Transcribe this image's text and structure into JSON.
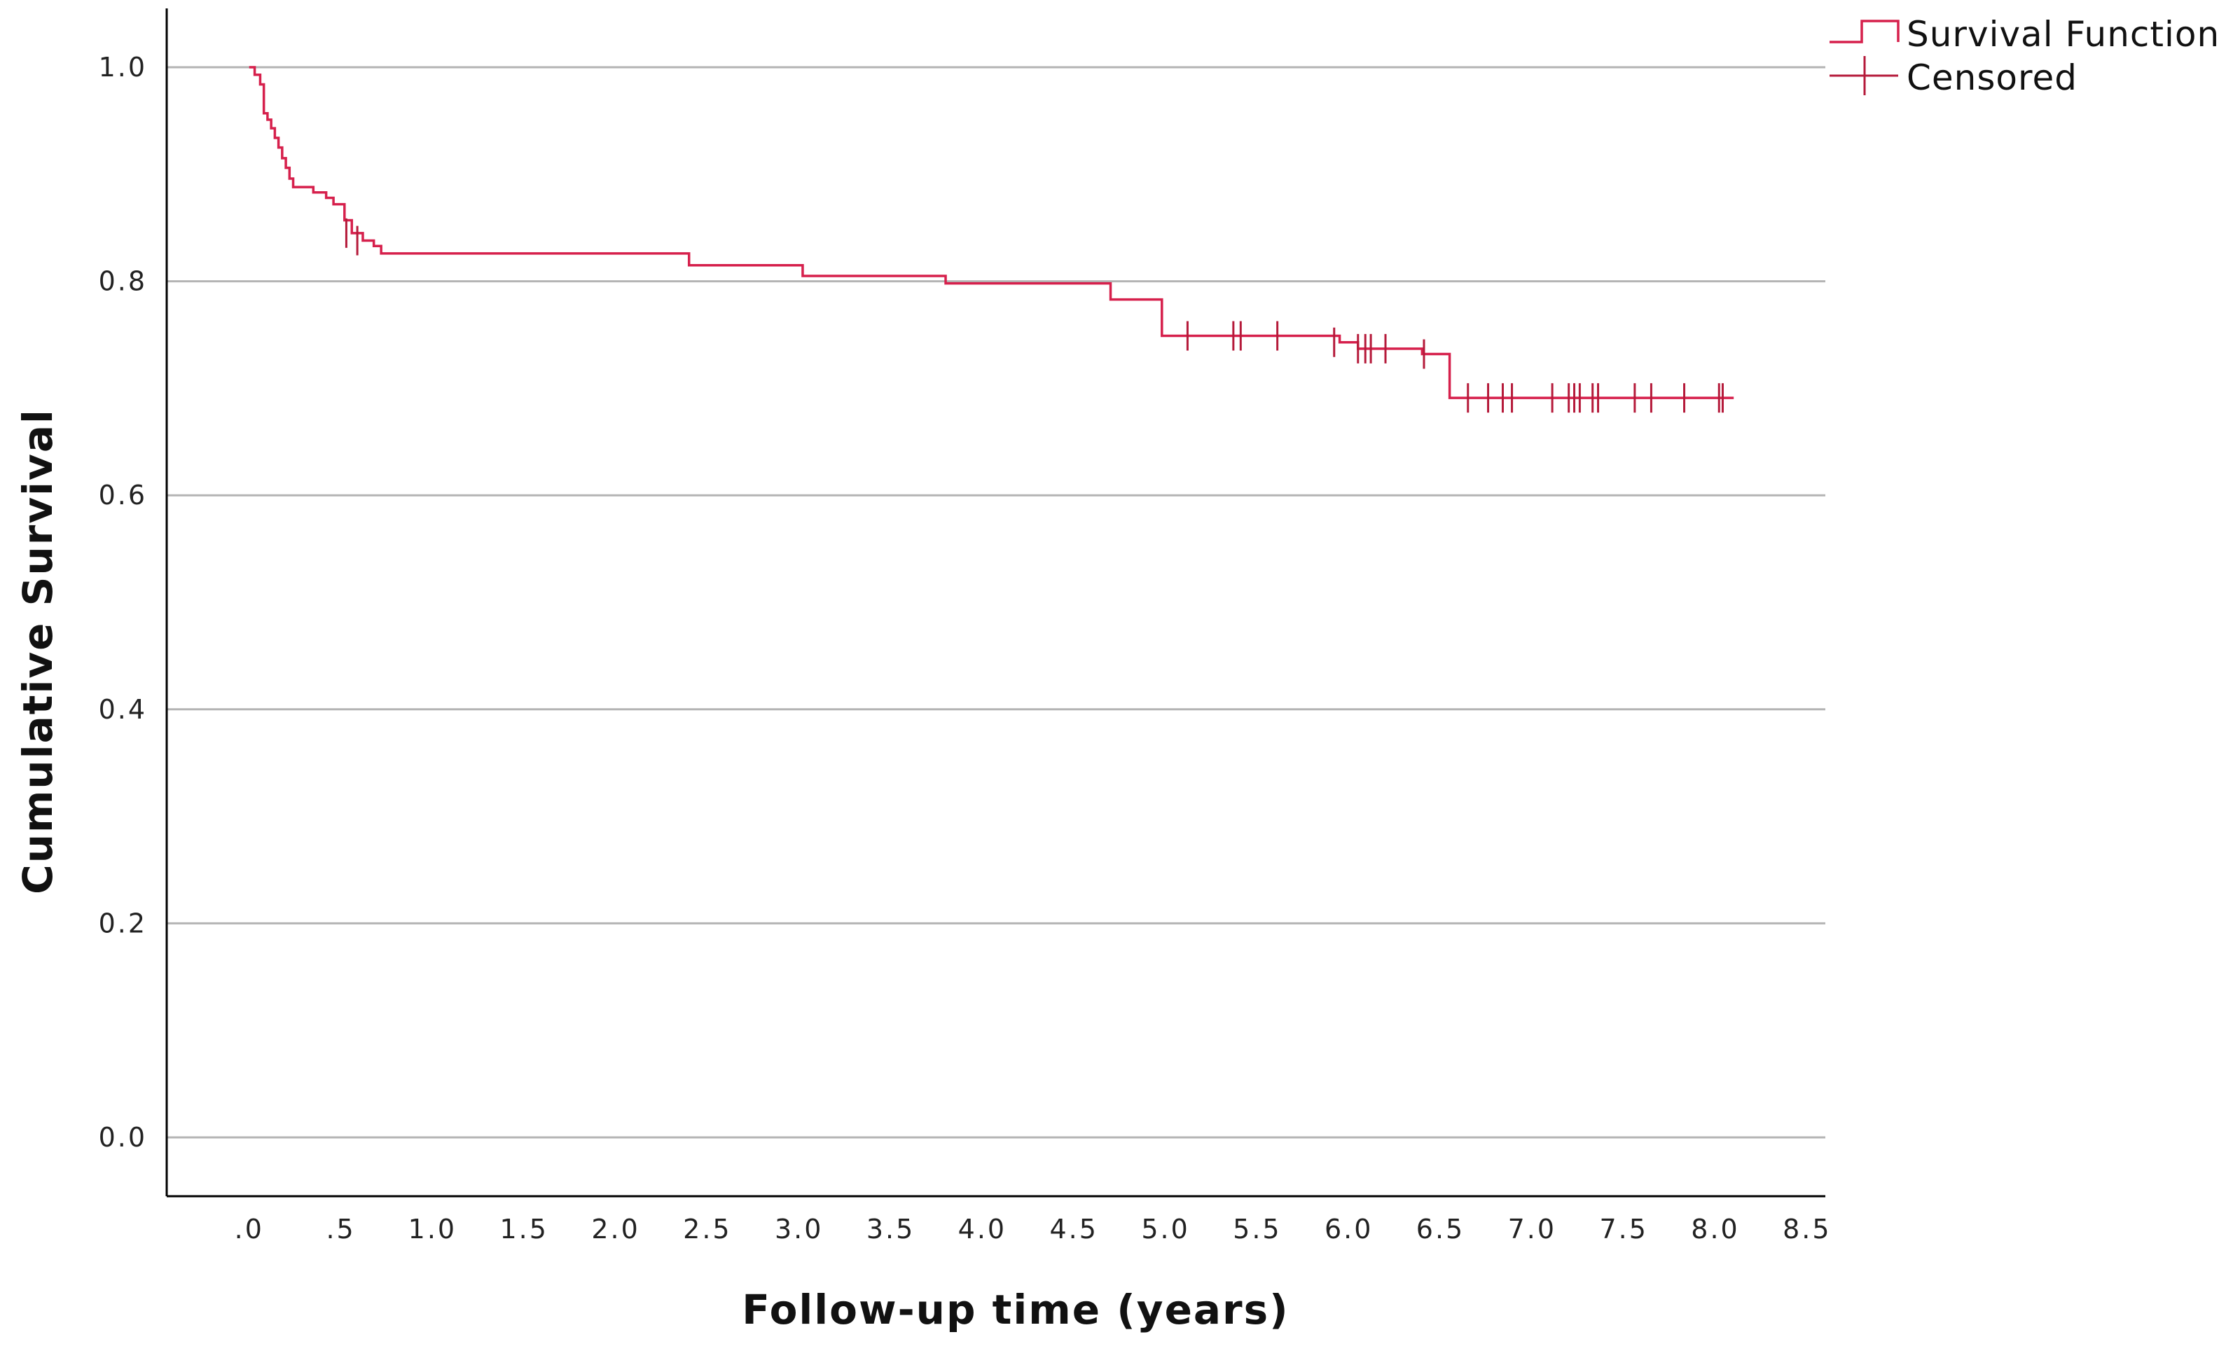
{
  "chart_data": {
    "type": "line",
    "xlabel": "Follow-up time (years)",
    "ylabel": "Cumulative Survival",
    "xlim": [
      -0.45,
      8.6
    ],
    "ylim": [
      -0.055,
      1.055
    ],
    "xticks": [
      0,
      0.5,
      1.0,
      1.5,
      2.0,
      2.5,
      3.0,
      3.5,
      4.0,
      4.5,
      5.0,
      5.5,
      6.0,
      6.5,
      7.0,
      7.5,
      8.0,
      8.5
    ],
    "xtick_labels": [
      ".0",
      ".5",
      "1.0",
      "1.5",
      "2.0",
      "2.5",
      "3.0",
      "3.5",
      "4.0",
      "4.5",
      "5.0",
      "5.5",
      "6.0",
      "6.5",
      "7.0",
      "7.5",
      "8.0",
      "8.5"
    ],
    "yticks": [
      0,
      0.2,
      0.4,
      0.6,
      0.8,
      1.0
    ],
    "ytick_labels": [
      "0.0",
      "0.2",
      "0.4",
      "0.6",
      "0.8",
      "1.0"
    ],
    "grid": "horizontal",
    "legend_position": "top-right",
    "series": [
      {
        "name": "Survival Function",
        "color": "#d6204c",
        "x": [
          0,
          0.03,
          0.06,
          0.08,
          0.1,
          0.12,
          0.14,
          0.16,
          0.18,
          0.2,
          0.22,
          0.24,
          0.26,
          0.35,
          0.42,
          0.46,
          0.52,
          0.56,
          0.62,
          0.68,
          0.72,
          2.4,
          3.02,
          3.8,
          4.7,
          4.98,
          5.95,
          6.05,
          6.4,
          6.55,
          8.1
        ],
        "y": [
          1.0,
          0.993,
          0.984,
          0.957,
          0.951,
          0.943,
          0.934,
          0.925,
          0.915,
          0.906,
          0.896,
          0.888,
          0.888,
          0.883,
          0.878,
          0.872,
          0.857,
          0.845,
          0.838,
          0.833,
          0.826,
          0.815,
          0.805,
          0.798,
          0.783,
          0.749,
          0.743,
          0.737,
          0.732,
          0.691,
          0.691
        ]
      },
      {
        "name": "Censored",
        "color": "#b51a3a",
        "x": [
          0.53,
          0.59,
          5.12,
          5.37,
          5.41,
          5.61,
          5.92,
          6.05,
          6.09,
          6.12,
          6.2,
          6.41,
          6.65,
          6.76,
          6.84,
          6.89,
          7.11,
          7.2,
          7.23,
          7.26,
          7.33,
          7.36,
          7.56,
          7.65,
          7.83,
          8.02,
          8.04
        ],
        "y": [
          0.845,
          0.838,
          0.749,
          0.749,
          0.749,
          0.749,
          0.743,
          0.737,
          0.737,
          0.737,
          0.737,
          0.732,
          0.691,
          0.691,
          0.691,
          0.691,
          0.691,
          0.691,
          0.691,
          0.691,
          0.691,
          0.691,
          0.691,
          0.691,
          0.691,
          0.691,
          0.691
        ]
      }
    ]
  }
}
